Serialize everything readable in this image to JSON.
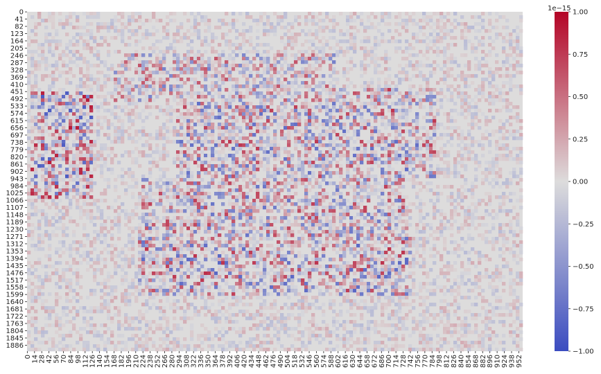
{
  "chart_data": {
    "type": "heatmap",
    "title": "",
    "xlabel": "",
    "ylabel": "",
    "colormap": "coolwarm",
    "x_tick_labels": [
      "0",
      "14",
      "28",
      "42",
      "56",
      "70",
      "84",
      "98",
      "112",
      "126",
      "140",
      "154",
      "168",
      "182",
      "196",
      "210",
      "224",
      "238",
      "252",
      "266",
      "280",
      "294",
      "308",
      "322",
      "336",
      "350",
      "364",
      "378",
      "392",
      "406",
      "420",
      "434",
      "448",
      "462",
      "476",
      "490",
      "504",
      "518",
      "532",
      "546",
      "560",
      "574",
      "588",
      "602",
      "616",
      "630",
      "644",
      "658",
      "672",
      "686",
      "700",
      "714",
      "728",
      "742",
      "756",
      "770",
      "784",
      "798",
      "812",
      "826",
      "840",
      "854",
      "868",
      "882",
      "896",
      "910",
      "924",
      "938",
      "952"
    ],
    "y_tick_labels": [
      "0",
      "41",
      "82",
      "123",
      "164",
      "205",
      "246",
      "287",
      "328",
      "369",
      "410",
      "451",
      "492",
      "533",
      "574",
      "615",
      "656",
      "697",
      "738",
      "779",
      "820",
      "861",
      "902",
      "943",
      "984",
      "1025",
      "1066",
      "1107",
      "1148",
      "1189",
      "1230",
      "1271",
      "1312",
      "1353",
      "1394",
      "1435",
      "1476",
      "1517",
      "1558",
      "1599",
      "1640",
      "1681",
      "1722",
      "1763",
      "1804",
      "1845",
      "1886"
    ],
    "n_cols": 960,
    "n_rows": 1920,
    "colorbar": {
      "vmin": -1.0,
      "vmax": 1.0,
      "scale_label": "1e−15",
      "ticks": [
        "−1.00",
        "−0.75",
        "−0.50",
        "−0.25",
        "0.00",
        "0.25",
        "0.50",
        "0.75",
        "1.00"
      ],
      "tick_values": [
        -1.0,
        -0.75,
        -0.5,
        -0.25,
        0,
        0.25,
        0.5,
        0.75,
        1.0
      ]
    },
    "colors": {
      "low": "#3b4cc0",
      "mid": "#dddcdc",
      "high": "#b40426"
    }
  }
}
